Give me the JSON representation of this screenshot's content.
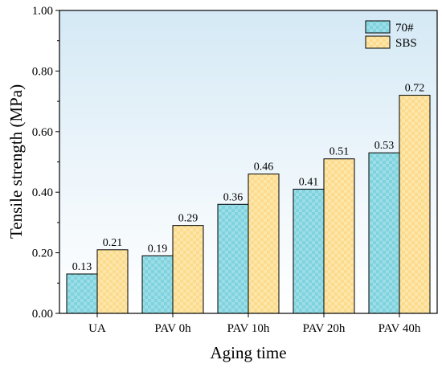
{
  "chart_data": {
    "type": "bar",
    "title": "",
    "xlabel": "Aging time",
    "ylabel": "Tensile strength (MPa)",
    "categories": [
      "UA",
      "PAV 0h",
      "PAV 10h",
      "PAV 20h",
      "PAV 40h"
    ],
    "series": [
      {
        "name": "70#",
        "values": [
          0.13,
          0.19,
          0.36,
          0.41,
          0.53
        ],
        "labels": [
          "0.13",
          "0.19",
          "0.36",
          "0.41",
          "0.53"
        ],
        "color": "#7fd3de"
      },
      {
        "name": "SBS",
        "values": [
          0.21,
          0.29,
          0.46,
          0.51,
          0.72
        ],
        "labels": [
          "0.21",
          "0.29",
          "0.46",
          "0.51",
          "0.72"
        ],
        "color": "#fcdc8c"
      }
    ],
    "ylim": [
      0,
      1.0
    ],
    "yticks": [
      "0.00",
      "0.20",
      "0.40",
      "0.60",
      "0.80",
      "1.00"
    ],
    "legend": "top-right",
    "grid": false,
    "bar_pattern": "checkered",
    "background": "gradient-light-blue-top"
  }
}
